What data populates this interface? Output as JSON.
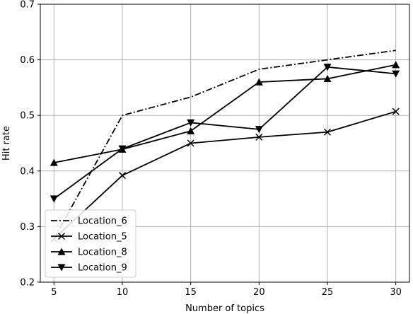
{
  "chart_data": {
    "type": "line",
    "xlabel": "Number of topics",
    "ylabel": "Hit rate",
    "x": [
      5,
      10,
      15,
      20,
      25,
      30
    ],
    "xticks": [
      "5",
      "10",
      "15",
      "20",
      "25",
      "30"
    ],
    "yticks": [
      "0.2",
      "0.3",
      "0.4",
      "0.5",
      "0.6",
      "0.7"
    ],
    "xlim": [
      4,
      31
    ],
    "ylim": [
      0.2,
      0.7
    ],
    "grid": true,
    "legend_position": "bottom-left",
    "series": [
      {
        "name": "Location_6",
        "values": [
          0.278,
          0.5,
          0.533,
          0.583,
          0.6,
          0.617
        ],
        "style": "dashdot",
        "marker": "none",
        "color": "#000000"
      },
      {
        "name": "Location_5",
        "values": [
          0.278,
          0.392,
          0.45,
          0.461,
          0.47,
          0.507
        ],
        "style": "solid",
        "marker": "x",
        "color": "#000000"
      },
      {
        "name": "Location_8",
        "values": [
          0.415,
          0.439,
          0.472,
          0.56,
          0.566,
          0.591
        ],
        "style": "solid",
        "marker": "triangle-up",
        "color": "#000000"
      },
      {
        "name": "Location_9",
        "values": [
          0.35,
          0.44,
          0.487,
          0.475,
          0.587,
          0.575
        ],
        "style": "solid",
        "marker": "triangle-down",
        "color": "#000000"
      }
    ]
  }
}
